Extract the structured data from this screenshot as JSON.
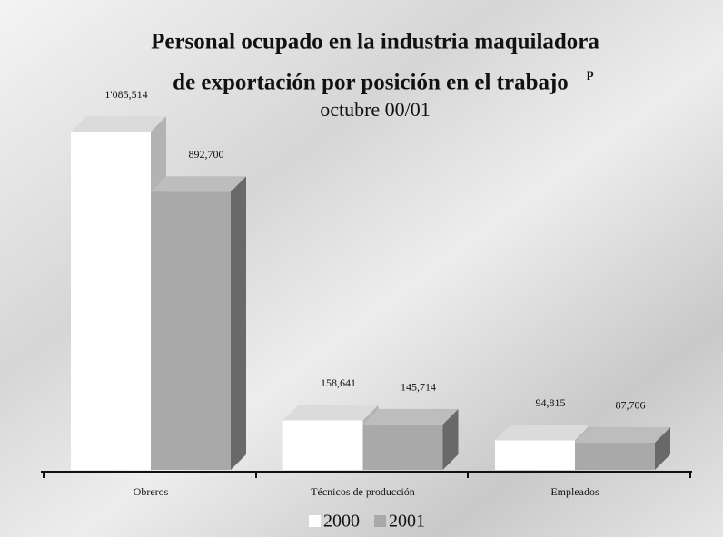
{
  "chart_data": {
    "type": "bar3d",
    "title": [
      "Personal ocupado en la industria maquiladora",
      "de exportación por posición en el trabajo"
    ],
    "title_superscript": "p",
    "subtitle": "octubre 00/01",
    "categories": [
      "Obreros",
      "Técnicos de producción",
      "Empleados"
    ],
    "series": [
      {
        "name": "2000",
        "color": "#ffffff",
        "values": [
          1085514,
          158641,
          94815
        ],
        "value_labels": [
          "1'085,514",
          "158,641",
          "94,815"
        ]
      },
      {
        "name": "2001",
        "color": "#a9a9a9",
        "values": [
          892700,
          145714,
          87706
        ],
        "value_labels": [
          "892,700",
          "145,714",
          "87,706"
        ]
      }
    ]
  }
}
